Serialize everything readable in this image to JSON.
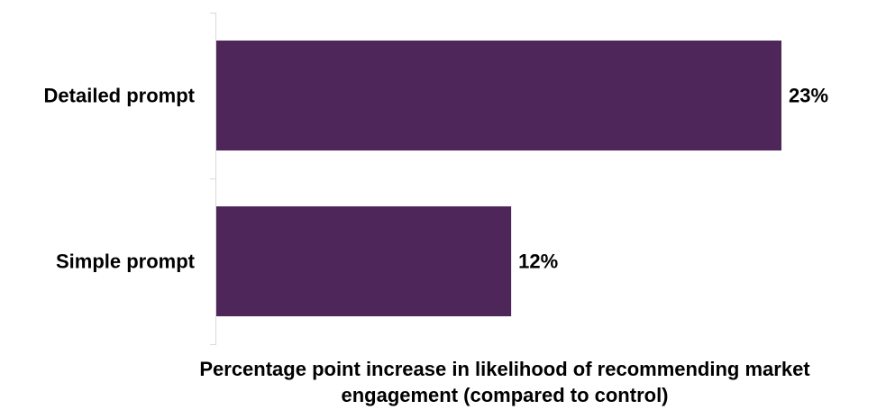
{
  "chart_data": {
    "type": "bar",
    "orientation": "horizontal",
    "categories": [
      "Detailed prompt",
      "Simple prompt"
    ],
    "values": [
      23,
      12
    ],
    "value_labels": [
      "23%",
      "12%"
    ],
    "unit": "%",
    "xlim": [
      0,
      25
    ],
    "grid": false,
    "legend": "none",
    "title": "",
    "xlabel_lines": [
      "Percentage point increase in likelihood of recommending market",
      "engagement (compared to control)"
    ],
    "ylabel": "",
    "bar_color": "#4e2659"
  }
}
